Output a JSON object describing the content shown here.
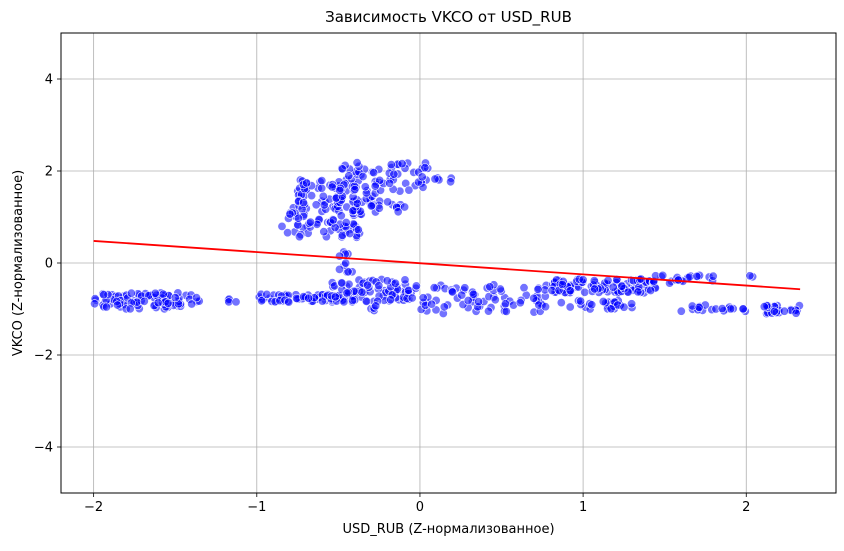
{
  "chart_data": {
    "type": "scatter",
    "title": "Зависимость VKCO от USD_RUB",
    "xlabel": "USD_RUB (Z-нормализованное)",
    "ylabel": "VKCO (Z-нормализованное)",
    "xlim": [
      -2.2,
      2.55
    ],
    "ylim": [
      -5,
      5
    ],
    "xticks": [
      -2,
      -1,
      0,
      1,
      2
    ],
    "yticks": [
      -4,
      -2,
      0,
      2,
      4
    ],
    "xtick_labels": [
      "−2",
      "−1",
      "0",
      "1",
      "2"
    ],
    "ytick_labels": [
      "−4",
      "−2",
      "0",
      "2",
      "4"
    ],
    "grid": true,
    "point_color": "#0000ff",
    "line_color": "#ff0000",
    "regression_line": {
      "x": [
        -2.0,
        2.33
      ],
      "y": [
        0.48,
        -0.57
      ]
    },
    "clusters": [
      {
        "x": [
          -2.0,
          -1.35
        ],
        "y": [
          -1.0,
          -0.65
        ],
        "n": 90
      },
      {
        "x": [
          -1.2,
          -1.1
        ],
        "y": [
          -0.95,
          -0.75
        ],
        "n": 4
      },
      {
        "x": [
          -1.0,
          -0.4
        ],
        "y": [
          -0.85,
          -0.68
        ],
        "n": 70
      },
      {
        "x": [
          -0.55,
          -0.05
        ],
        "y": [
          -0.85,
          -0.35
        ],
        "n": 80
      },
      {
        "x": [
          -0.3,
          -0.25
        ],
        "y": [
          -1.05,
          -0.9
        ],
        "n": 4
      },
      {
        "x": [
          -0.5,
          -0.4
        ],
        "y": [
          -0.2,
          0.25
        ],
        "n": 10
      },
      {
        "x": [
          -0.85,
          -0.35
        ],
        "y": [
          0.55,
          1.35
        ],
        "n": 90
      },
      {
        "x": [
          -0.75,
          -0.25
        ],
        "y": [
          1.3,
          1.85
        ],
        "n": 60
      },
      {
        "x": [
          -0.5,
          0.05
        ],
        "y": [
          1.55,
          2.2
        ],
        "n": 60
      },
      {
        "x": [
          0.0,
          0.2
        ],
        "y": [
          1.75,
          1.9
        ],
        "n": 6
      },
      {
        "x": [
          -0.3,
          -0.05
        ],
        "y": [
          1.1,
          1.35
        ],
        "n": 15
      },
      {
        "x": [
          -0.05,
          0.8
        ],
        "y": [
          -1.1,
          -0.45
        ],
        "n": 80
      },
      {
        "x": [
          0.8,
          1.45
        ],
        "y": [
          -0.65,
          -0.35
        ],
        "n": 110
      },
      {
        "x": [
          0.8,
          1.3
        ],
        "y": [
          -1.0,
          -0.8
        ],
        "n": 30
      },
      {
        "x": [
          1.3,
          1.8
        ],
        "y": [
          -0.45,
          -0.25
        ],
        "n": 25
      },
      {
        "x": [
          1.6,
          2.0
        ],
        "y": [
          -1.05,
          -0.9
        ],
        "n": 20
      },
      {
        "x": [
          2.0,
          2.1
        ],
        "y": [
          -0.4,
          -0.25
        ],
        "n": 2
      },
      {
        "x": [
          2.1,
          2.33
        ],
        "y": [
          -1.1,
          -0.9
        ],
        "n": 25
      }
    ]
  }
}
